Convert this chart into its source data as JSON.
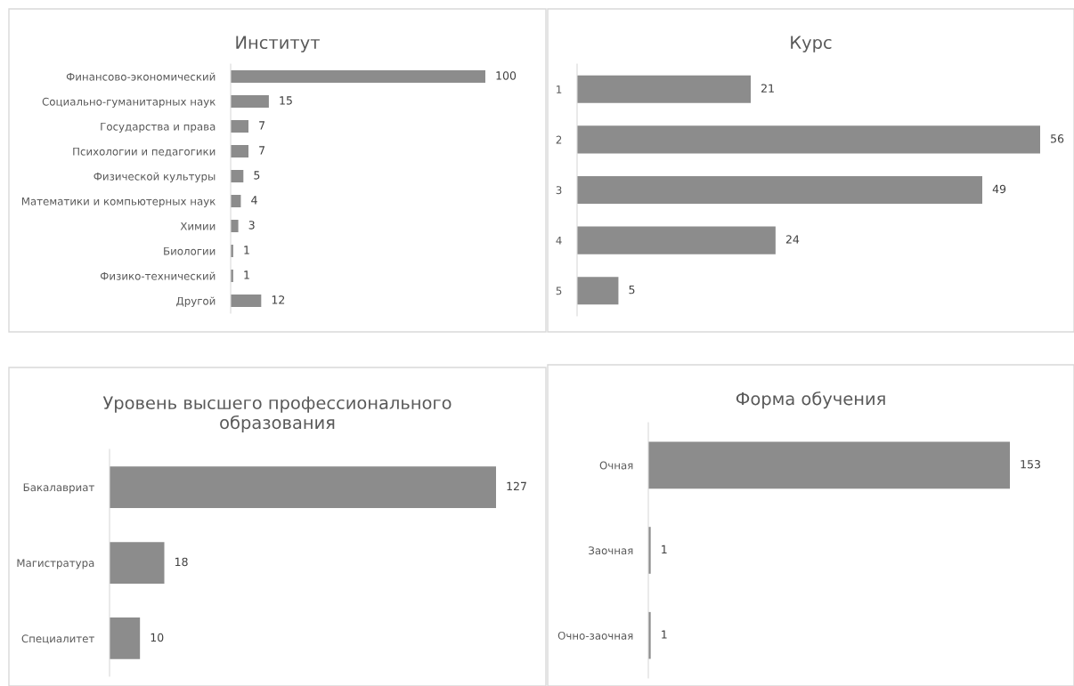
{
  "chart_data": [
    {
      "type": "bar",
      "orientation": "horizontal",
      "title": "Институт",
      "categories": [
        "Финансово-экономический",
        "Социально-гуманитарных наук",
        "Государства и права",
        "Психологии и педагогики",
        "Физической культуры",
        "Математики и компьютерных наук",
        "Химии",
        "Биологии",
        "Физико-технический",
        "Другой"
      ],
      "values": [
        100,
        15,
        7,
        7,
        5,
        4,
        3,
        1,
        1,
        12
      ],
      "color": "#8c8c8c",
      "data_labels": true,
      "tick_labels": "y",
      "grid": false,
      "legend": false
    },
    {
      "type": "bar",
      "orientation": "horizontal",
      "title": "Курс",
      "categories": [
        "1",
        "2",
        "3",
        "4",
        "5"
      ],
      "values": [
        21,
        56,
        49,
        24,
        5
      ],
      "color": "#8c8c8c",
      "data_labels": true,
      "tick_labels": "y",
      "grid": false,
      "legend": false
    },
    {
      "type": "bar",
      "orientation": "horizontal",
      "title": "Уровень высшего профессионального образования",
      "categories": [
        "Бакалавриат",
        "Магистратура",
        "Специалитет"
      ],
      "values": [
        127,
        18,
        10
      ],
      "color": "#8c8c8c",
      "data_labels": true,
      "tick_labels": "y",
      "grid": false,
      "legend": false
    },
    {
      "type": "bar",
      "orientation": "horizontal",
      "title": "Форма обучения",
      "categories": [
        "Очная",
        "Заочная",
        "Очно-заочная"
      ],
      "values": [
        153,
        1,
        1
      ],
      "color": "#8c8c8c",
      "data_labels": true,
      "tick_labels": "y",
      "grid": false,
      "legend": false
    }
  ]
}
